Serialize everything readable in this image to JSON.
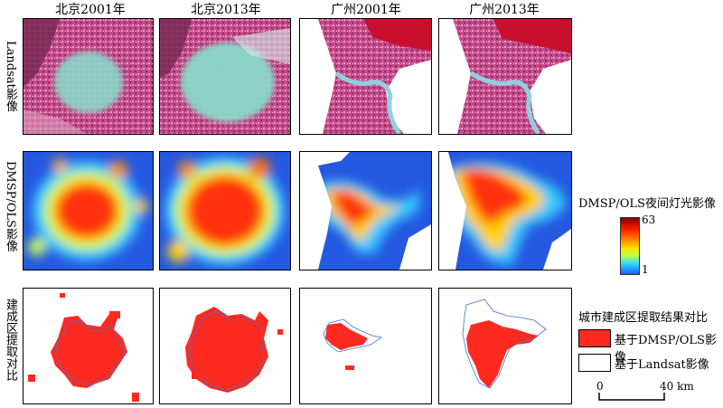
{
  "columns": [
    "北京2001年",
    "北京2013年",
    "广州2001年",
    "广州2013年"
  ],
  "rows": [
    "Landsat影像",
    "DMSP/OLS影像",
    "建成区提取对比"
  ],
  "nightlight_legend": {
    "title": "DMSP/OLS夜间灯光影像",
    "max": "63",
    "min": "1"
  },
  "extraction_legend": {
    "title": "城市建成区提取结果对比",
    "items": [
      {
        "label": "基于DMSP/OLS影像",
        "color": "#ff2a1f"
      },
      {
        "label": "基于Landsat影像",
        "color": "#ffffff"
      }
    ]
  },
  "scale_bar": {
    "zero": "0",
    "max": "40 km"
  }
}
